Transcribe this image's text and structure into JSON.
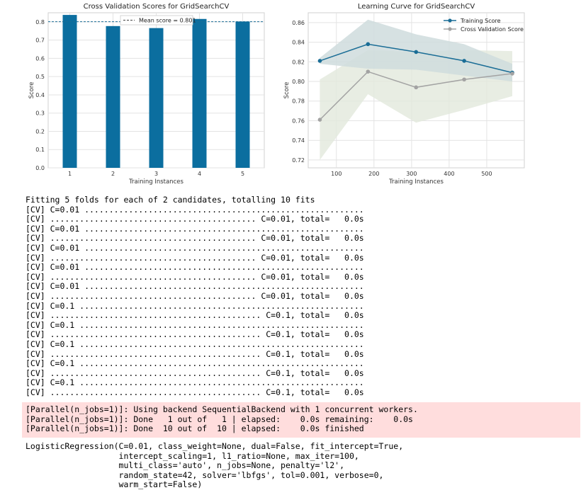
{
  "colors": {
    "bar": "#0b6e9f",
    "training": "#1a6d96",
    "cv": "#a3a3a3",
    "training_band": "#cfdcdd",
    "cv_band": "#e2e9dc",
    "stderr_bg": "#ffdddd"
  },
  "chart_data": [
    {
      "type": "bar",
      "title": "Cross Validation Scores for GridSearchCV",
      "xlabel": "Training Instances",
      "ylabel": "Score",
      "categories": [
        "1",
        "2",
        "3",
        "4",
        "5"
      ],
      "values": [
        0.838,
        0.777,
        0.766,
        0.816,
        0.802
      ],
      "ylim": [
        0,
        0.85
      ],
      "yticks": [
        "0.0",
        "0.1",
        "0.2",
        "0.3",
        "0.4",
        "0.5",
        "0.6",
        "0.7",
        "0.8"
      ],
      "mean": 0.801,
      "legend": [
        "Mean score = 0.801"
      ],
      "legend_position": "top-center",
      "grid": true
    },
    {
      "type": "line",
      "title": "Learning Curve for GridSearchCV",
      "xlabel": "Training Instances",
      "ylabel": "Score",
      "x": [
        56,
        184,
        312,
        440,
        568
      ],
      "xlim": [
        25,
        600
      ],
      "xticks": [
        "100",
        "200",
        "300",
        "400",
        "500"
      ],
      "ylim": [
        0.712,
        0.87
      ],
      "yticks": [
        "0.72",
        "0.74",
        "0.76",
        "0.78",
        "0.80",
        "0.82",
        "0.84",
        "0.86"
      ],
      "series": [
        {
          "name": "Training Score",
          "values": [
            0.821,
            0.838,
            0.83,
            0.821,
            0.809
          ],
          "band_upper": [
            0.824,
            0.863,
            0.848,
            0.838,
            0.818
          ],
          "band_lower": [
            0.818,
            0.813,
            0.812,
            0.806,
            0.8
          ]
        },
        {
          "name": "Cross Validation Score",
          "values": [
            0.761,
            0.81,
            0.794,
            0.802,
            0.808
          ],
          "band_upper": [
            0.802,
            0.832,
            0.83,
            0.832,
            0.831
          ],
          "band_lower": [
            0.72,
            0.787,
            0.758,
            0.771,
            0.785
          ]
        }
      ],
      "legend_position": "top-right",
      "grid": true
    }
  ],
  "output": {
    "log_lines": [
      "Fitting 5 folds for each of 2 candidates, totalling 10 fits",
      "[CV] C=0.01 .........................................................",
      "[CV] .......................................... C=0.01, total=   0.0s",
      "[CV] C=0.01 .........................................................",
      "[CV] .......................................... C=0.01, total=   0.0s",
      "[CV] C=0.01 .........................................................",
      "[CV] .......................................... C=0.01, total=   0.0s",
      "[CV] C=0.01 .........................................................",
      "[CV] .......................................... C=0.01, total=   0.0s",
      "[CV] C=0.01 .........................................................",
      "[CV] .......................................... C=0.01, total=   0.0s",
      "[CV] C=0.1 ..........................................................",
      "[CV] ........................................... C=0.1, total=   0.0s",
      "[CV] C=0.1 ..........................................................",
      "[CV] ........................................... C=0.1, total=   0.0s",
      "[CV] C=0.1 ..........................................................",
      "[CV] ........................................... C=0.1, total=   0.0s",
      "[CV] C=0.1 ..........................................................",
      "[CV] ........................................... C=0.1, total=   0.0s",
      "[CV] C=0.1 ..........................................................",
      "[CV] ........................................... C=0.1, total=   0.0s"
    ],
    "stderr_lines": [
      "[Parallel(n_jobs=1)]: Using backend SequentialBackend with 1 concurrent workers.",
      "[Parallel(n_jobs=1)]: Done   1 out of   1 | elapsed:    0.0s remaining:    0.0s",
      "[Parallel(n_jobs=1)]: Done  10 out of  10 | elapsed:    0.0s finished"
    ],
    "result_lines": [
      "LogisticRegression(C=0.01, class_weight=None, dual=False, fit_intercept=True,",
      "                   intercept_scaling=1, l1_ratio=None, max_iter=100,",
      "                   multi_class='auto', n_jobs=None, penalty='l2',",
      "                   random_state=42, solver='lbfgs', tol=0.001, verbose=0,",
      "                   warm_start=False)"
    ]
  }
}
